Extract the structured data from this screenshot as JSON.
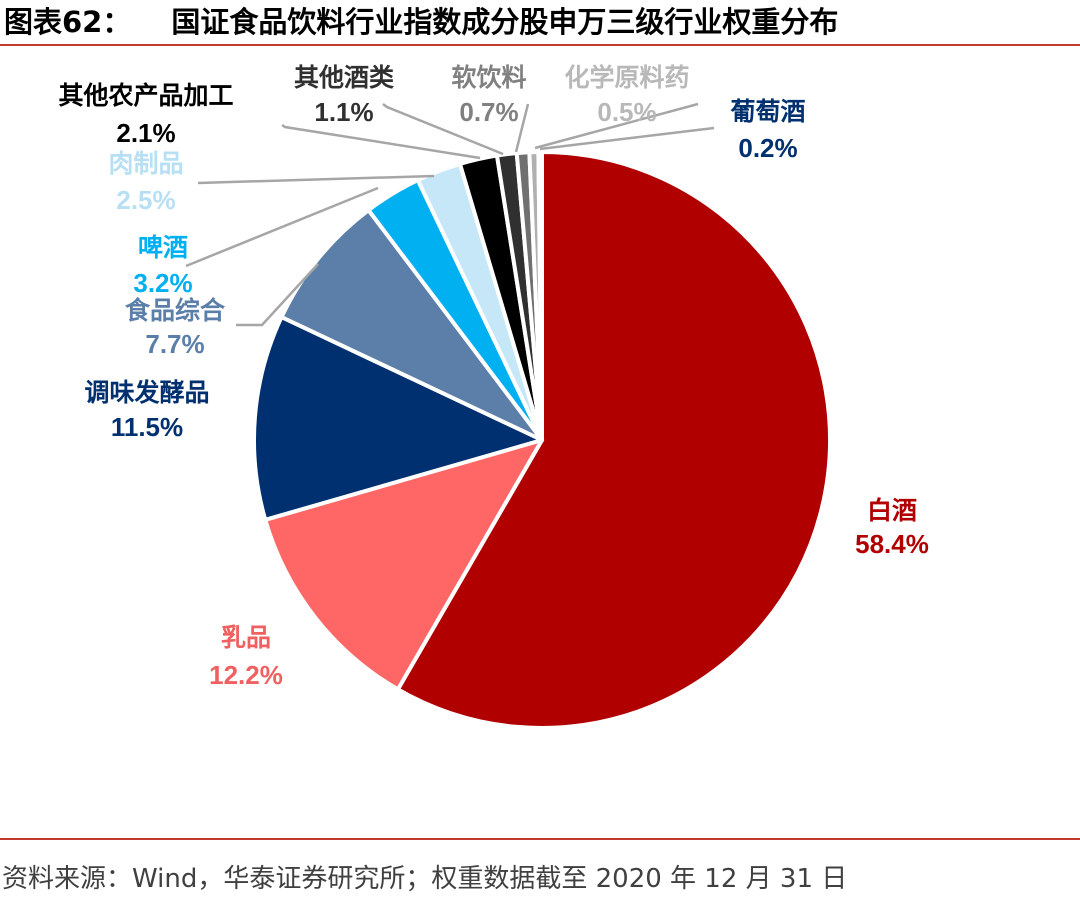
{
  "title": {
    "figure_no": "图表62：",
    "caption": "国证食品饮料行业指数成分股申万三级行业权重分布"
  },
  "source": "资料来源：Wind，华泰证券研究所；权重数据截至 2020 年 12 月 31 日",
  "colors": {
    "rule": "#c0392b"
  },
  "chart_data": {
    "type": "pie",
    "slices": [
      {
        "name": "白酒",
        "label": "58.4%",
        "value": 58.4,
        "color": "#b00000",
        "label_color": "#b00000"
      },
      {
        "name": "乳品",
        "label": "12.2%",
        "value": 12.2,
        "color": "#ff6666",
        "label_color": "#f06060"
      },
      {
        "name": "调味发酵品",
        "label": "11.5%",
        "value": 11.5,
        "color": "#003070",
        "label_color": "#003070"
      },
      {
        "name": "食品综合",
        "label": "7.7%",
        "value": 7.7,
        "color": "#5b7fa8",
        "label_color": "#5b7fa8"
      },
      {
        "name": "啤酒",
        "label": "3.2%",
        "value": 3.2,
        "color": "#00b0f0",
        "label_color": "#00b0f0"
      },
      {
        "name": "肉制品",
        "label": "2.5%",
        "value": 2.5,
        "color": "#c5e7f7",
        "label_color": "#b8e0f4"
      },
      {
        "name": "其他农产品加工",
        "label": "2.1%",
        "value": 2.1,
        "color": "#000000",
        "label_color": "#000000"
      },
      {
        "name": "其他酒类",
        "label": "1.1%",
        "value": 1.1,
        "color": "#303030",
        "label_color": "#303030"
      },
      {
        "name": "软饮料",
        "label": "0.7%",
        "value": 0.7,
        "color": "#707070",
        "label_color": "#808080"
      },
      {
        "name": "化学原料药",
        "label": "0.5%",
        "value": 0.5,
        "color": "#b0b0b0",
        "label_color": "#b8b8b8"
      },
      {
        "name": "葡萄酒",
        "label": "0.2%",
        "value": 0.2,
        "color": "#8a8a8a",
        "label_color": "#003070"
      }
    ]
  }
}
